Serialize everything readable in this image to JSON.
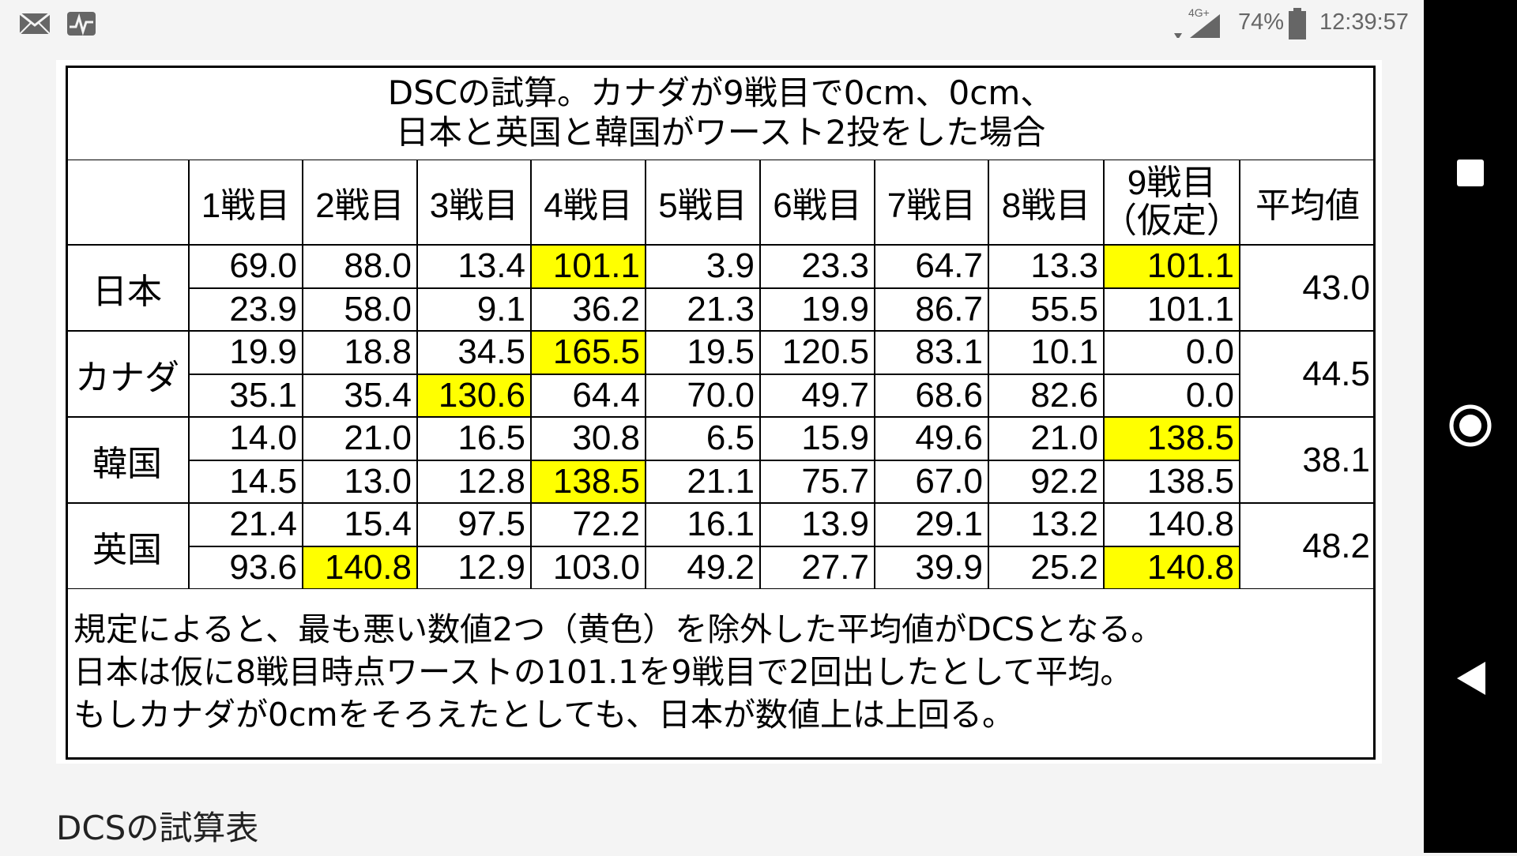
{
  "status_bar": {
    "network": "4G+",
    "battery": "74%",
    "time": "12:39:57"
  },
  "table": {
    "title": [
      "DSCの試算。カナダが9戦目で0cm、0cm、",
      "日本と英国と韓国がワースト2投をした場合"
    ],
    "header": [
      "1戦目",
      "2戦目",
      "3戦目",
      "4戦目",
      "5戦目",
      "6戦目",
      "7戦目",
      "8戦目",
      [
        "9戦目",
        "（仮定）"
      ],
      "平均値"
    ],
    "highlight_color": "#ffff00",
    "groups": [
      {
        "name": "日本",
        "average": "43.0",
        "rows": [
          {
            "values": [
              "69.0",
              "88.0",
              "13.4",
              "101.1",
              "3.9",
              "23.3",
              "64.7",
              "13.3",
              "101.1"
            ],
            "highlighted": [
              3,
              8
            ]
          },
          {
            "values": [
              "23.9",
              "58.0",
              "9.1",
              "36.2",
              "21.3",
              "19.9",
              "86.7",
              "55.5",
              "101.1"
            ]
          }
        ]
      },
      {
        "name": "カナダ",
        "average": "44.5",
        "rows": [
          {
            "values": [
              "19.9",
              "18.8",
              "34.5",
              "165.5",
              "19.5",
              "120.5",
              "83.1",
              "10.1",
              "0.0"
            ],
            "highlighted": [
              3
            ]
          },
          {
            "values": [
              "35.1",
              "35.4",
              "130.6",
              "64.4",
              "70.0",
              "49.7",
              "68.6",
              "82.6",
              "0.0"
            ],
            "highlighted": [
              2
            ]
          }
        ]
      },
      {
        "name": "韓国",
        "average": "38.1",
        "rows": [
          {
            "values": [
              "14.0",
              "21.0",
              "16.5",
              "30.8",
              "6.5",
              "15.9",
              "49.6",
              "21.0",
              "138.5"
            ],
            "highlighted": [
              8
            ]
          },
          {
            "values": [
              "14.5",
              "13.0",
              "12.8",
              "138.5",
              "21.1",
              "75.7",
              "67.0",
              "92.2",
              "138.5"
            ],
            "highlighted": [
              3
            ]
          }
        ]
      },
      {
        "name": "英国",
        "average": "48.2",
        "rows": [
          {
            "values": [
              "21.4",
              "15.4",
              "97.5",
              "72.2",
              "16.1",
              "13.9",
              "29.1",
              "13.2",
              "140.8"
            ]
          },
          {
            "values": [
              "93.6",
              "140.8",
              "12.9",
              "103.0",
              "49.2",
              "27.7",
              "39.9",
              "25.2",
              "140.8"
            ],
            "highlighted": [
              1,
              8
            ]
          }
        ]
      }
    ],
    "notes": [
      "規定によると、最も悪い数値2つ（黄色）を除外した平均値がDCSとなる。",
      "日本は仮に8戦目時点ワーストの101.1を9戦目で2回出したとして平均。",
      "もしカナダが0cmをそろえたとしても、日本が数値上は上回る。"
    ]
  },
  "caption": "DCSの試算表"
}
